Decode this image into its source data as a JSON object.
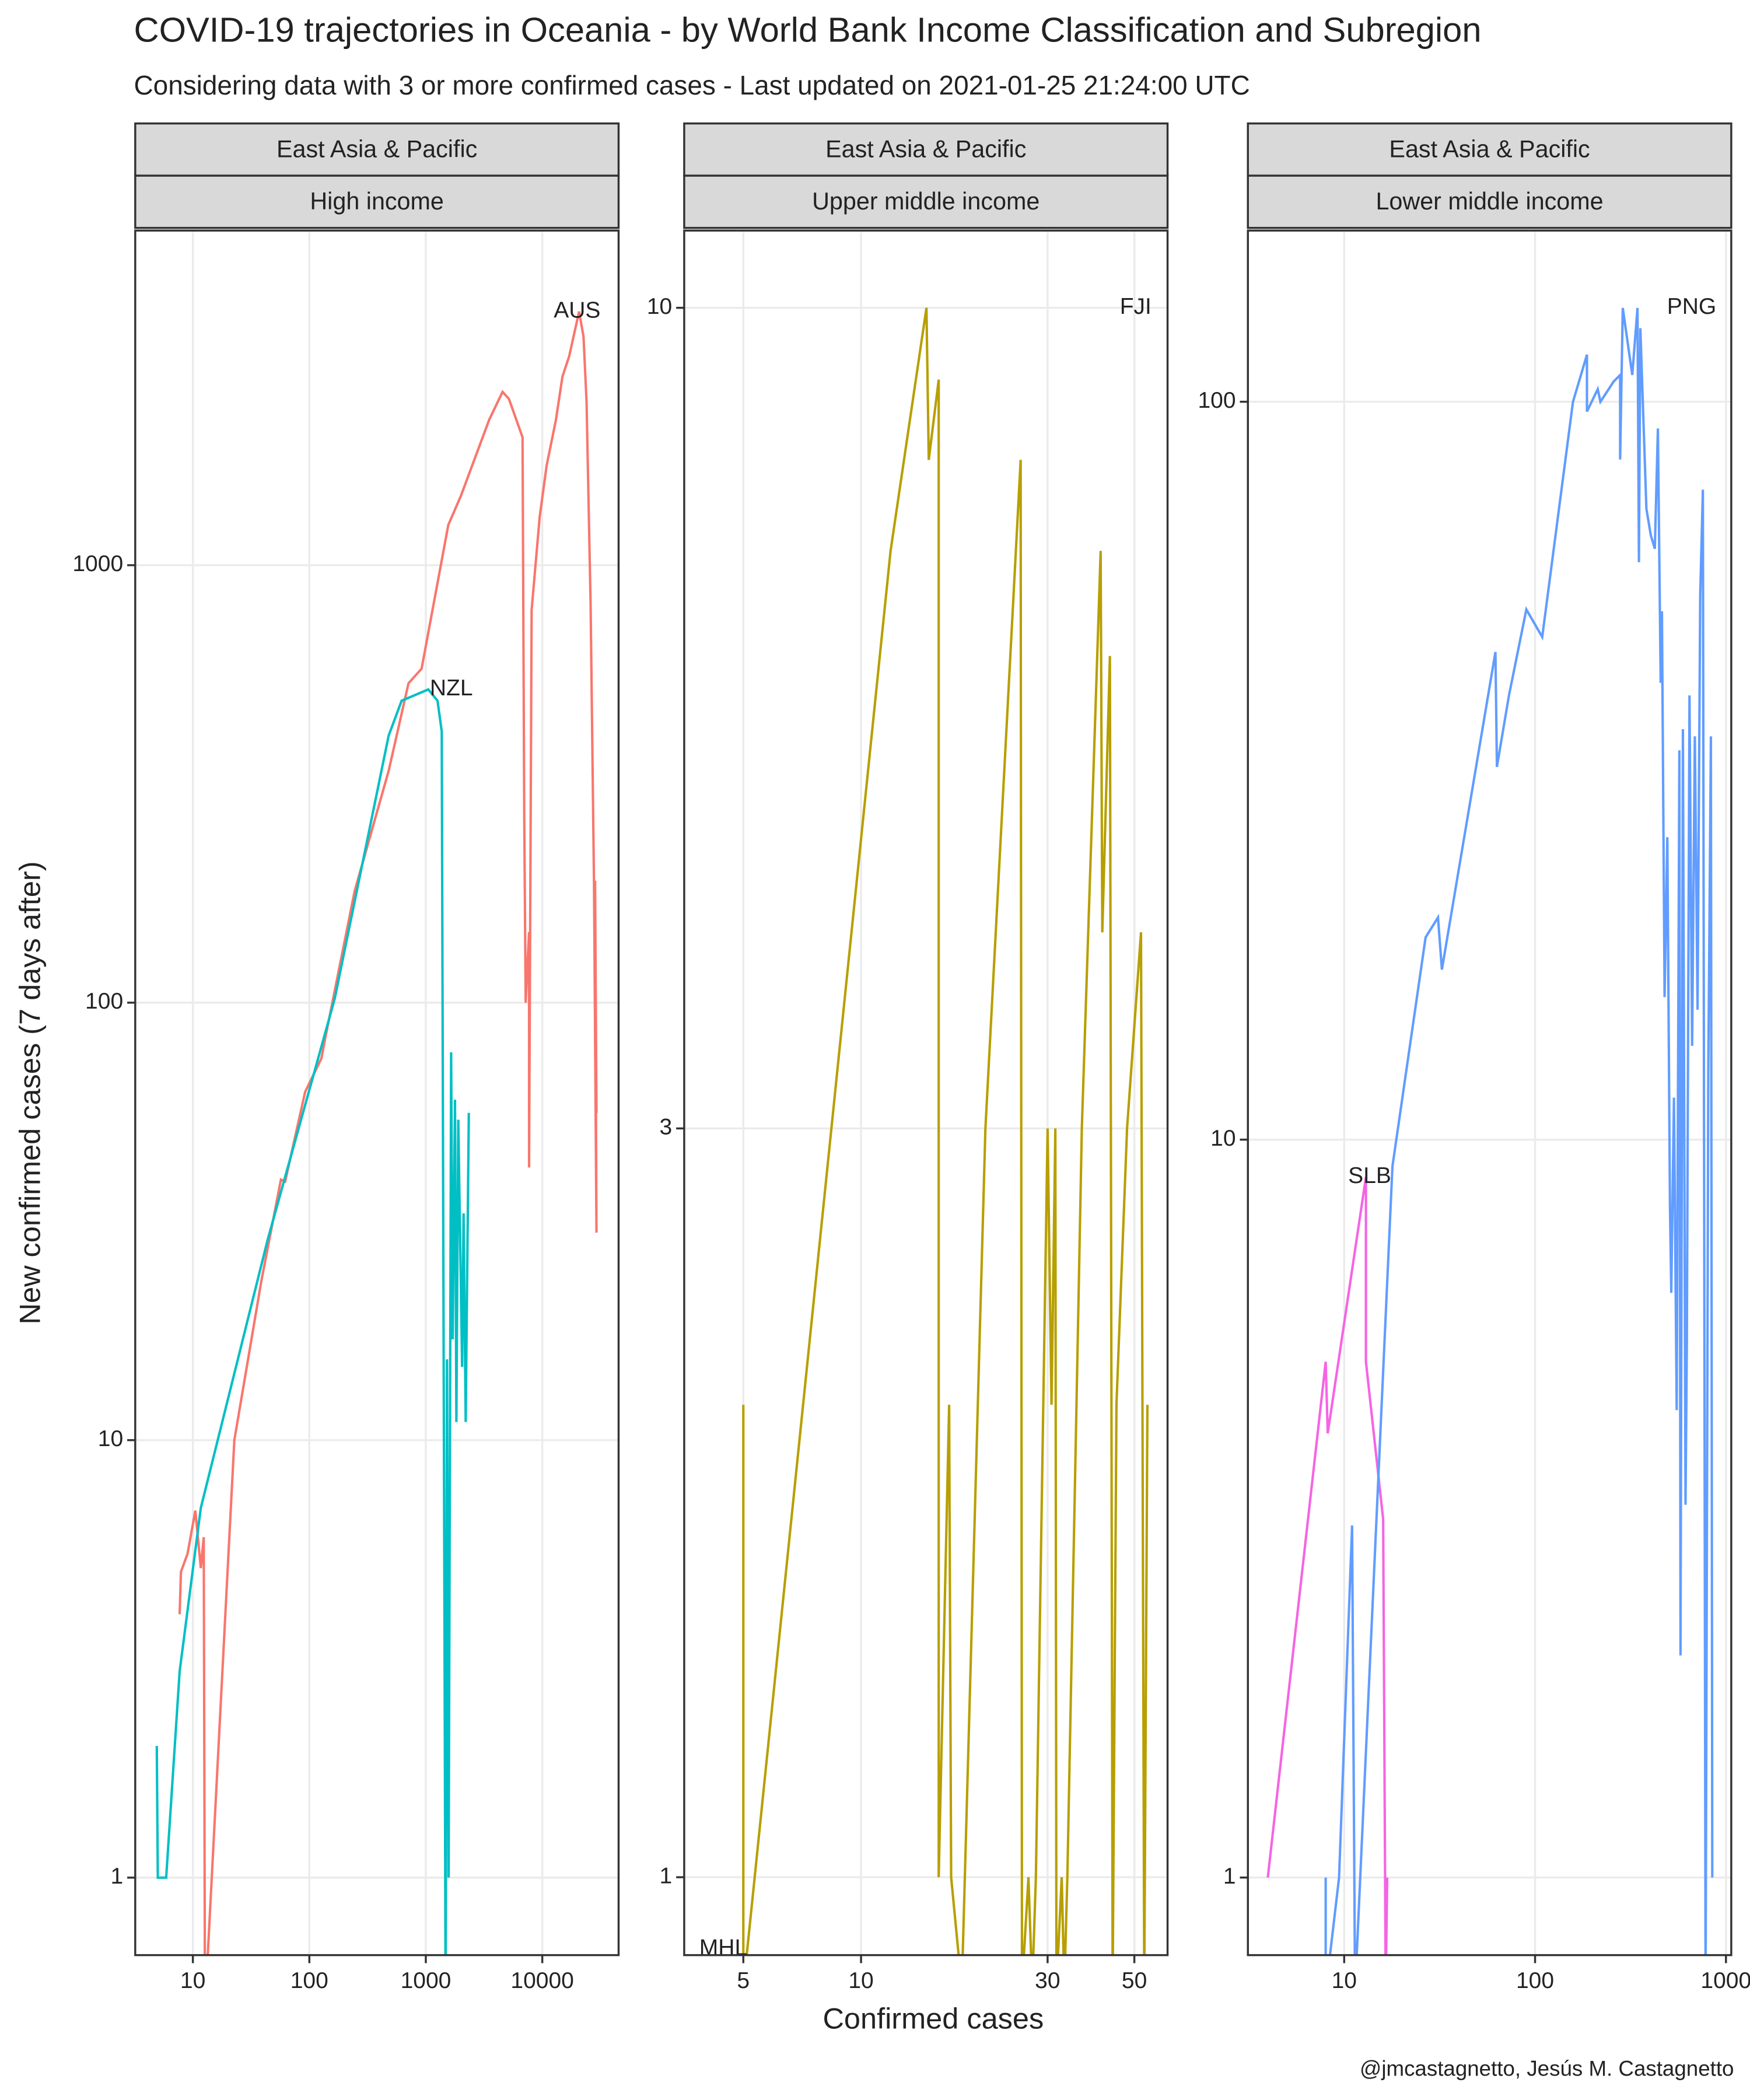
{
  "title": "COVID-19 trajectories in Oceania - by World Bank Income Classification and Subregion",
  "subtitle": "Considering data with 3 or more confirmed cases - Last updated on 2021-01-25 21:24:00 UTC",
  "x_label": "Confirmed cases",
  "y_label": "New confirmed cases (7 days after)",
  "caption": "@jmcastagnetto, Jesús M. Castagnetto",
  "chart_data": [
    {
      "type": "line",
      "strips": [
        "East Asia & Pacific",
        "High income"
      ],
      "xscale": "log",
      "yscale": "log",
      "grid": true,
      "xlim": [
        3.2,
        45200
      ],
      "ylim": [
        0.665,
        5820
      ],
      "xticks": [
        10,
        100,
        1000,
        10000
      ],
      "yticks": [
        1,
        10,
        100,
        1000
      ],
      "series": [
        {
          "name": "AUS",
          "color": "#F8766D",
          "x": [
            7.7,
            7.9,
            9,
            10.5,
            11.7,
            12.4,
            12.7,
            22.7,
            38.6,
            57,
            62,
            92,
            127,
            137,
            245,
            480,
            710,
            920,
            1560,
            2000,
            3500,
            4560,
            5170,
            6770,
            7000,
            7200,
            7700,
            7700,
            8100,
            9500,
            10900,
            13100,
            14900,
            17000,
            20700,
            22600,
            24000,
            26000,
            27800,
            29200,
            28400,
            29200
          ],
          "values": [
            4,
            5,
            5.5,
            6.9,
            5.1,
            6,
            0.5,
            10,
            23,
            39.4,
            39,
            62.5,
            74.6,
            83,
            180,
            339,
            537,
            580,
            1236,
            1440,
            2150,
            2490,
            2400,
            1960,
            264,
            100,
            145,
            42,
            790,
            1290,
            1690,
            2150,
            2700,
            3000,
            3800,
            3330,
            2360,
            810,
            187,
            29.8,
            190,
            56
          ]
        },
        {
          "name": "NZL",
          "color": "#00BFC4",
          "x": [
            4.9,
            5,
            5.9,
            7.7,
            11.7,
            44,
            165,
            480,
            620,
            810,
            1050,
            1260,
            1370,
            1480,
            1520,
            1570,
            1650,
            1700,
            1780,
            1830,
            1900,
            2050,
            2110,
            2200,
            2340
          ],
          "values": [
            2,
            1,
            1,
            2.96,
            7,
            28.8,
            102,
            408,
            490,
            505,
            520,
            490,
            417,
            0.5,
            15.3,
            1,
            77,
            17,
            60,
            11,
            54,
            14.7,
            33,
            11,
            56
          ]
        }
      ]
    },
    {
      "type": "line",
      "strips": [
        "East Asia & Pacific",
        "Upper middle income"
      ],
      "xscale": "log",
      "yscale": "log",
      "grid": true,
      "xlim": [
        3.53,
        60.8
      ],
      "ylim": [
        0.892,
        11.2
      ],
      "xticks": [
        5,
        10,
        30,
        50
      ],
      "yticks": [
        1,
        3,
        10
      ],
      "series": [
        {
          "name": "FJI",
          "color": "#B79F00",
          "x": [
            5,
            5,
            11.9,
            14.7,
            14.9,
            15.8,
            15.8,
            16.8,
            17,
            18.1,
            20.8,
            25.6,
            25.8,
            26.8,
            27.4,
            28,
            30,
            30.7,
            31.4,
            31.6,
            32.6,
            33.1,
            33.7,
            36.7,
            41,
            41.4,
            43.3,
            44,
            45,
            47.9,
            52,
            53,
            54
          ],
          "values": [
            2,
            0.85,
            7,
            10,
            8,
            9,
            1,
            2,
            1,
            0.85,
            3,
            8,
            0.85,
            1,
            0.85,
            1,
            3,
            2,
            3,
            0.85,
            1,
            0.85,
            1,
            3,
            7,
            4,
            6,
            0.85,
            2,
            3,
            4,
            0.85,
            2
          ]
        },
        {
          "name": "MHL",
          "color": "#00BA38",
          "x": [
            5
          ],
          "values": [
            0.9
          ]
        }
      ]
    },
    {
      "type": "line",
      "strips": [
        "East Asia & Pacific",
        "Lower middle income"
      ],
      "xscale": "log",
      "yscale": "log",
      "grid": true,
      "xlim": [
        3.13,
        1066
      ],
      "ylim": [
        0.785,
        170.6
      ],
      "xticks": [
        10,
        100,
        1000
      ],
      "yticks": [
        1,
        10,
        100
      ],
      "series": [
        {
          "name": "SLB",
          "color": "#F564E3",
          "x": [
            3.98,
            8,
            8.2,
            13,
            13,
            16,
            16.5,
            16.8
          ],
          "values": [
            1,
            5,
            4,
            8.9,
            5,
            3.06,
            0.7,
            1
          ]
        },
        {
          "name": "PNG",
          "color": "#619CFF",
          "x": [
            8,
            8,
            9.4,
            11,
            11.4,
            17.9,
            26.7,
            31,
            32.5,
            62,
            63.1,
            73,
            90,
            109,
            158,
            187,
            187,
            213,
            220,
            258,
            279,
            279,
            288,
            323,
            344,
            350,
            356,
            383,
            404,
            424,
            440,
            455,
            462,
            477,
            493,
            509,
            517,
            534,
            552,
            570,
            578,
            595,
            614,
            624,
            644,
            665,
            687,
            710,
            733,
            757,
            782,
            808,
            834,
            848
          ],
          "values": [
            1,
            0.7,
            1,
            3,
            0.7,
            9.2,
            18.8,
            20,
            17,
            45.8,
            32,
            40,
            52.3,
            48,
            100,
            115.8,
            97,
            104,
            100,
            106.5,
            108.7,
            83.5,
            134,
            108.7,
            134,
            60.6,
            125.8,
            71.6,
            65.9,
            63.2,
            92,
            41.6,
            52,
            15.6,
            25.7,
            8.1,
            6.2,
            11.4,
            4.3,
            33.7,
            2,
            36,
            3.2,
            5.3,
            40,
            13.4,
            35.2,
            15,
            54.6,
            76,
            0.7,
            12.3,
            35.2,
            1
          ]
        }
      ]
    }
  ]
}
